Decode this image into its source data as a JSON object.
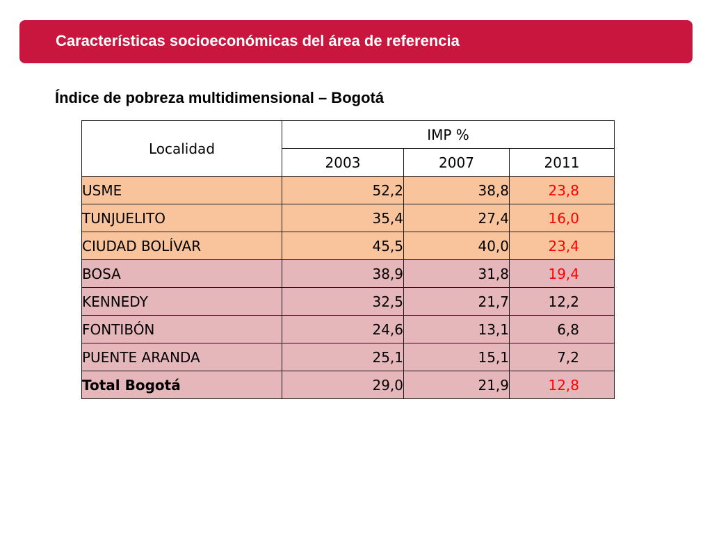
{
  "header": {
    "title": "Características socioeconómicas del área de referencia",
    "color": "#c8163f"
  },
  "subtitle": "Índice de pobreza multidimensional – Bogotá",
  "table": {
    "locality_header": "Localidad",
    "imp_header": "IMP %",
    "years": [
      "2003",
      "2007",
      "2011"
    ],
    "rows": [
      {
        "locality": "USME",
        "v2003": "52,2",
        "v2007": "38,8",
        "v2011": "23,8",
        "highlight": true,
        "group": "orange"
      },
      {
        "locality": "TUNJUELITO",
        "v2003": "35,4",
        "v2007": "27,4",
        "v2011": "16,0",
        "highlight": true,
        "group": "orange"
      },
      {
        "locality": "CIUDAD BOLÍVAR",
        "v2003": "45,5",
        "v2007": "40,0",
        "v2011": "23,4",
        "highlight": true,
        "group": "orange"
      },
      {
        "locality": "BOSA",
        "v2003": "38,9",
        "v2007": "31,8",
        "v2011": "19,4",
        "highlight": true,
        "group": "pink"
      },
      {
        "locality": "KENNEDY",
        "v2003": "32,5",
        "v2007": "21,7",
        "v2011": "12,2",
        "highlight": false,
        "group": "pink"
      },
      {
        "locality": "FONTIBÓN",
        "v2003": "24,6",
        "v2007": "13,1",
        "v2011": "6,8",
        "highlight": false,
        "group": "pink"
      },
      {
        "locality": "PUENTE ARANDA",
        "v2003": "25,1",
        "v2007": "15,1",
        "v2011": "7,2",
        "highlight": false,
        "group": "pink"
      },
      {
        "locality": "Total Bogotá",
        "v2003": "29,0",
        "v2007": "21,9",
        "v2011": "12,8",
        "highlight": true,
        "group": "pink"
      }
    ],
    "colors": {
      "orange": "#f9c39b",
      "pink": "#e6b7ba",
      "highlight_text": "#ff0000"
    }
  }
}
